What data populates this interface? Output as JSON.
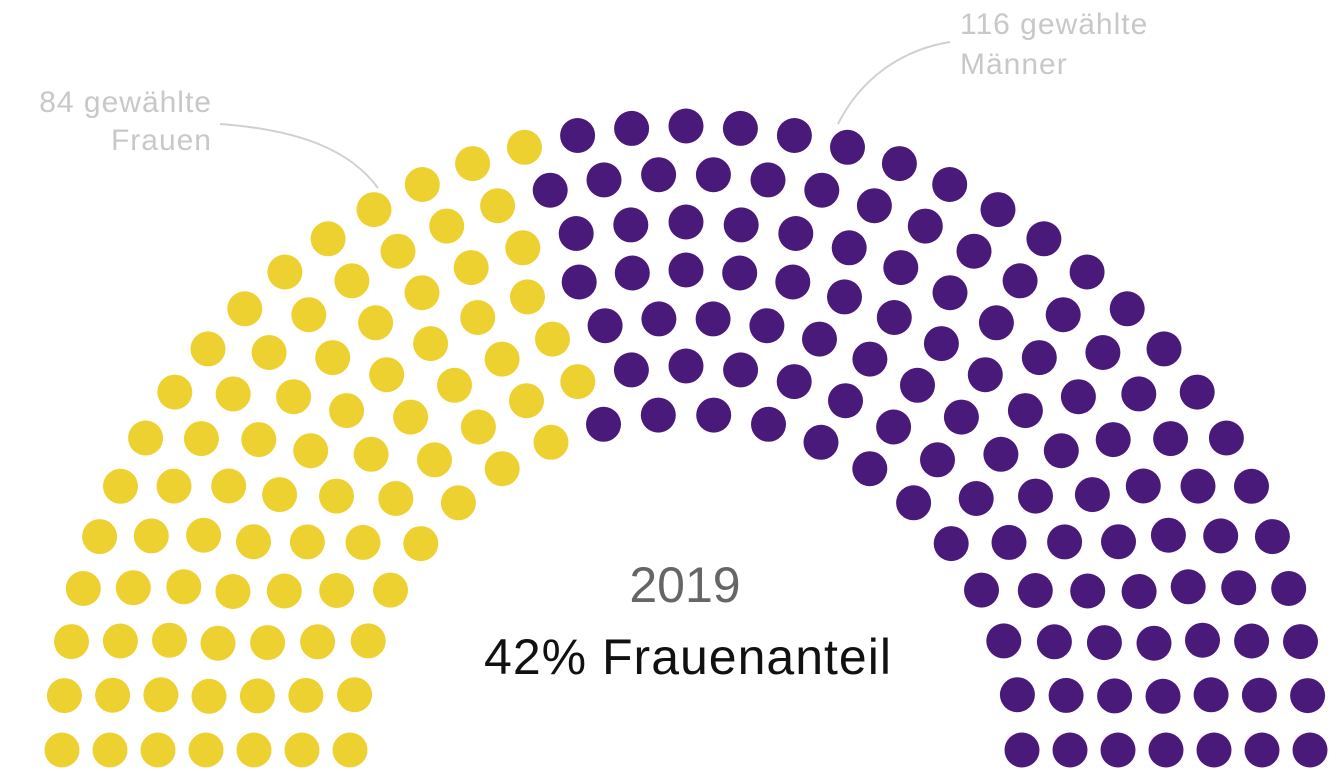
{
  "chart_data": {
    "type": "parliament",
    "title": "2019",
    "subtitle": "42% Frauenanteil",
    "values": [
      84,
      116
    ],
    "value_labels": [
      [
        "84 gewählte",
        "Frauen"
      ],
      [
        "116 gewählte",
        "Männer"
      ]
    ],
    "colors": [
      "#ecd131",
      "#4a1a7a"
    ]
  }
}
